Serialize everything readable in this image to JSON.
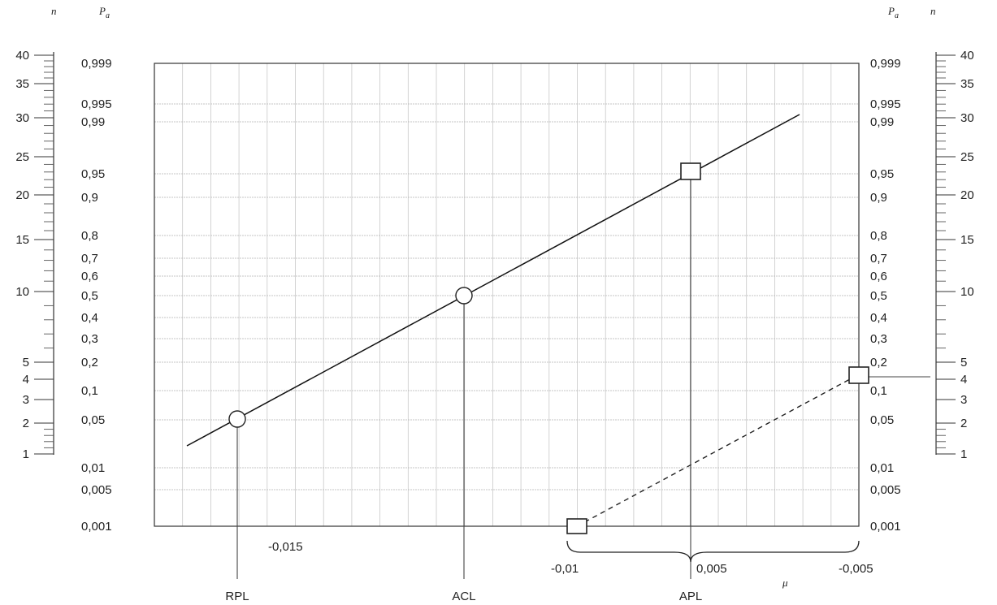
{
  "chart_data": {
    "type": "scatter",
    "left_axes": {
      "n_label": "n",
      "pa_label": "P",
      "pa_sub": "a"
    },
    "right_axes": {
      "n_label": "n",
      "pa_label": "P",
      "pa_sub": "a"
    },
    "pa_ticks": [
      "0,999",
      "0,995",
      "0,99",
      "0,95",
      "0,9",
      "0,8",
      "0,7",
      "0,6",
      "0,5",
      "0,4",
      "0,3",
      "0,2",
      "0,1",
      "0,05",
      "0,01",
      "0,005",
      "0,001"
    ],
    "n_ticks": [
      "40",
      "35",
      "30",
      "25",
      "20",
      "15",
      "10",
      "5",
      "4",
      "3",
      "2",
      "1"
    ],
    "mu_label": "μ",
    "left_tick_labels": [
      {
        "text": "-0,015",
        "mu": -0.015
      }
    ],
    "bracket_tick_labels": [
      {
        "text": "-0,01",
        "mu": -0.01
      },
      {
        "text": "0,005",
        "mu": 0.005
      },
      {
        "text": "-0,005",
        "mu": -0.005
      }
    ],
    "reference_lines": [
      {
        "name": "RPL",
        "pa": "0,05"
      },
      {
        "name": "ACL",
        "pa": "0,5"
      },
      {
        "name": "APL",
        "pa": "0,95"
      }
    ],
    "annotations": {
      "circles": [
        {
          "pa": "0,05",
          "ref": "RPL"
        },
        {
          "pa": "0,5",
          "ref": "ACL"
        }
      ],
      "squares": [
        {
          "pa": "0,95",
          "ref": "APL"
        },
        {
          "pa": "0,001",
          "mu": -0.01
        },
        {
          "n": "4"
        }
      ]
    },
    "grid": true
  }
}
